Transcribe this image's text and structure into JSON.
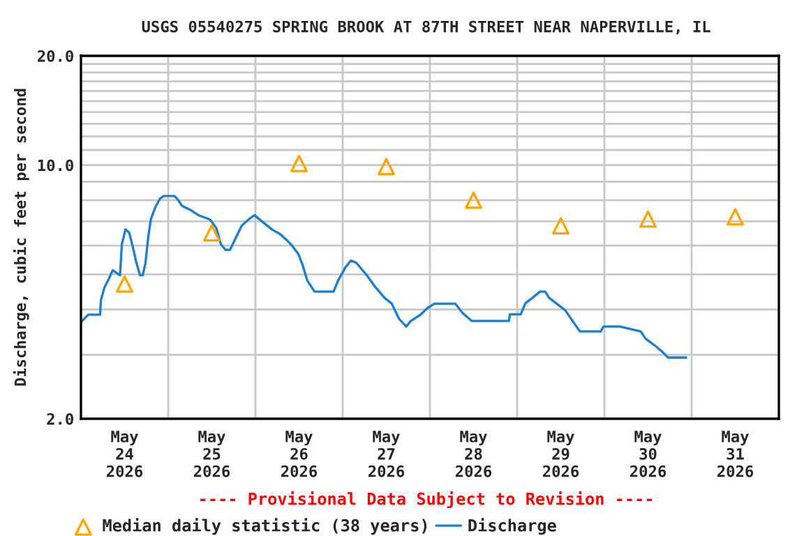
{
  "chart_data": {
    "type": "line",
    "title": "USGS 05540275 SPRING BROOK AT 87TH STREET NEAR NAPERVILLE, IL",
    "ylabel": "Discharge, cubic feet per second",
    "annotations": [
      "---- Provisional Data Subject to Revision ----"
    ],
    "log": "y",
    "grid": true,
    "legend": "bottom",
    "xlim": [
      "2026-05-24",
      "2026-06-01"
    ],
    "xticks": [
      {
        "value": "2026-05-24T12:00",
        "label": "May\n24\n2026"
      },
      {
        "value": "2026-05-25T12:00",
        "label": "May\n25\n2026"
      },
      {
        "value": "2026-05-26T12:00",
        "label": "May\n26\n2026"
      },
      {
        "value": "2026-05-27T12:00",
        "label": "May\n27\n2026"
      },
      {
        "value": "2026-05-28T12:00",
        "label": "May\n28\n2026"
      },
      {
        "value": "2026-05-29T12:00",
        "label": "May\n29\n2026"
      },
      {
        "value": "2026-05-30T12:00",
        "label": "May\n30\n2026"
      },
      {
        "value": "2026-05-31T12:00",
        "label": "May\n31\n2026"
      },
      {
        "value": "2026-05-25",
        "label": null
      },
      {
        "value": "2026-05-26",
        "label": null
      },
      {
        "value": "2026-05-27",
        "label": null
      },
      {
        "value": "2026-05-28",
        "label": null
      },
      {
        "value": "2026-05-29",
        "label": null
      },
      {
        "value": "2026-05-30",
        "label": null
      },
      {
        "value": "2026-05-31",
        "label": null
      }
    ],
    "ylim": [
      2,
      20
    ],
    "yticks": [
      {
        "value": 2,
        "label": "2.0"
      },
      {
        "value": 10,
        "label": "10.0"
      },
      {
        "value": 20,
        "label": "20.0"
      },
      {
        "value": 3,
        "label": null
      },
      {
        "value": 4,
        "label": null
      },
      {
        "value": 5,
        "label": null
      },
      {
        "value": 6,
        "label": null
      },
      {
        "value": 7,
        "label": null
      },
      {
        "value": 8,
        "label": null
      },
      {
        "value": 9,
        "label": null
      },
      {
        "value": 11,
        "label": null
      },
      {
        "value": 12,
        "label": null
      },
      {
        "value": 13,
        "label": null
      },
      {
        "value": 14,
        "label": null
      },
      {
        "value": 15,
        "label": null
      },
      {
        "value": 16,
        "label": null
      },
      {
        "value": 17,
        "label": null
      },
      {
        "value": 18,
        "label": null
      },
      {
        "value": 19,
        "label": null
      }
    ],
    "series": [
      {
        "name": "Median daily statistic (38 years)",
        "type": "scatter",
        "marker": "triangle",
        "color": "#ffa500",
        "x": [
          "2026-05-24T12:00",
          "2026-05-25T12:00",
          "2026-05-26T12:00",
          "2026-05-27T12:00",
          "2026-05-28T12:00",
          "2026-05-29T12:00",
          "2026-05-30T12:00",
          "2026-05-31T12:00"
        ],
        "values": [
          4.7,
          6.5,
          10.1,
          9.9,
          8.0,
          6.8,
          7.1,
          7.2
        ]
      },
      {
        "name": "Discharge",
        "color": "#1a7fd0",
        "x": [
          "2026-05-24T00:00",
          "2026-05-24T02:00",
          "2026-05-24T05:15",
          "2026-05-24T05:30",
          "2026-05-24T06:30",
          "2026-05-24T07:30",
          "2026-05-24T08:45",
          "2026-05-24T10:45",
          "2026-05-24T11:15",
          "2026-05-24T12:15",
          "2026-05-24T13:15",
          "2026-05-24T14:15",
          "2026-05-24T15:15",
          "2026-05-24T16:15",
          "2026-05-24T17:00",
          "2026-05-24T17:45",
          "2026-05-24T18:30",
          "2026-05-24T19:15",
          "2026-05-24T20:30",
          "2026-05-24T21:45",
          "2026-05-24T22:45",
          "2026-05-25T01:45",
          "2026-05-25T02:45",
          "2026-05-25T03:45",
          "2026-05-25T06:15",
          "2026-05-25T08:15",
          "2026-05-25T11:30",
          "2026-05-25T13:15",
          "2026-05-25T14:30",
          "2026-05-25T15:45",
          "2026-05-25T17:00",
          "2026-05-25T18:15",
          "2026-05-25T20:15",
          "2026-05-25T22:15",
          "2026-05-25T23:45",
          "2026-05-26T01:00",
          "2026-05-26T04:30",
          "2026-05-26T06:45",
          "2026-05-26T08:30",
          "2026-05-26T10:00",
          "2026-05-26T11:45",
          "2026-05-26T13:00",
          "2026-05-26T14:15",
          "2026-05-26T16:15",
          "2026-05-26T21:30",
          "2026-05-26T22:45",
          "2026-05-27T00:45",
          "2026-05-27T02:15",
          "2026-05-27T03:45",
          "2026-05-27T06:30",
          "2026-05-27T09:00",
          "2026-05-27T11:30",
          "2026-05-27T13:30",
          "2026-05-27T15:30",
          "2026-05-27T17:30",
          "2026-05-27T18:45",
          "2026-05-27T21:15",
          "2026-05-27T23:15",
          "2026-05-28T01:15",
          "2026-05-28T07:00",
          "2026-05-28T09:00",
          "2026-05-28T11:30",
          "2026-05-28T21:45",
          "2026-05-28T22:00",
          "2026-05-29T01:00",
          "2026-05-29T02:15",
          "2026-05-29T04:15",
          "2026-05-29T06:15",
          "2026-05-29T07:45",
          "2026-05-29T08:45",
          "2026-05-29T10:45",
          "2026-05-29T13:15",
          "2026-05-29T15:15",
          "2026-05-29T17:15",
          "2026-05-29T23:00",
          "2026-05-29T23:45",
          "2026-05-30T04:15",
          "2026-05-30T10:00",
          "2026-05-30T11:15",
          "2026-05-30T13:45",
          "2026-05-30T15:45",
          "2026-05-30T17:30",
          "2026-05-30T22:30"
        ],
        "values": [
          3.69,
          3.87,
          3.87,
          4.25,
          4.61,
          4.82,
          5.13,
          4.97,
          6.05,
          6.65,
          6.52,
          5.96,
          5.38,
          4.97,
          4.97,
          5.38,
          6.32,
          7.11,
          7.67,
          8.08,
          8.22,
          8.22,
          8.01,
          7.73,
          7.51,
          7.28,
          7.08,
          6.71,
          6.05,
          5.84,
          5.84,
          6.2,
          6.81,
          7.1,
          7.28,
          7.1,
          6.65,
          6.46,
          6.23,
          6.01,
          5.7,
          5.3,
          4.81,
          4.48,
          4.48,
          4.81,
          5.22,
          5.46,
          5.38,
          4.99,
          4.61,
          4.31,
          4.15,
          3.77,
          3.59,
          3.72,
          3.86,
          4.03,
          4.15,
          4.15,
          3.91,
          3.72,
          3.72,
          3.88,
          3.88,
          4.16,
          4.31,
          4.48,
          4.48,
          4.31,
          4.16,
          3.98,
          3.72,
          3.48,
          3.48,
          3.59,
          3.59,
          3.48,
          3.33,
          3.19,
          3.07,
          2.95,
          2.95
        ]
      }
    ]
  }
}
